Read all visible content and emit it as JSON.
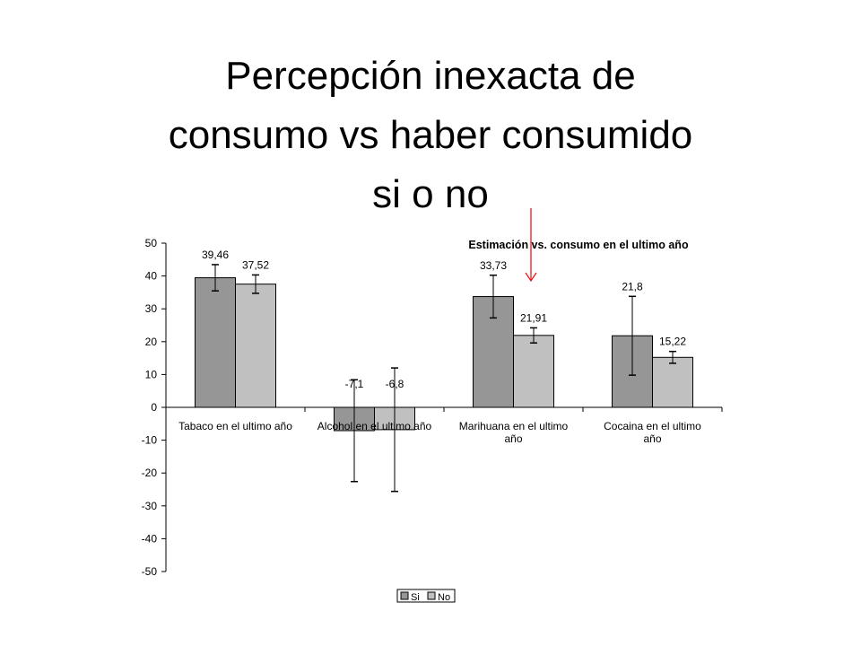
{
  "slide": {
    "title_lines": [
      "Percepción inexacta de",
      "consumo vs haber consumido",
      "si o no"
    ]
  },
  "chart_data": {
    "type": "bar",
    "title": "Estimación vs. consumo en el ultimo año",
    "categories": [
      [
        "Tabaco en el ultimo año"
      ],
      [
        "Alcohol en el ultimo año"
      ],
      [
        "Marihuana en el ultimo",
        "año"
      ],
      [
        "Cocaina en el ultimo",
        "año"
      ]
    ],
    "series": [
      {
        "name": "Si",
        "color": "#969696",
        "values": [
          39.46,
          -7.1,
          33.73,
          21.8
        ],
        "labels": [
          "39,46",
          "-7,1",
          "33,73",
          "21,8"
        ],
        "error": [
          4,
          15.5,
          6.5,
          12
        ]
      },
      {
        "name": "No",
        "color": "#c0c0c0",
        "values": [
          37.52,
          -6.8,
          21.91,
          15.22
        ],
        "labels": [
          "37,52",
          "-6,8",
          "21,91",
          "15,22"
        ],
        "error": [
          2.8,
          18.8,
          2.3,
          1.8
        ]
      }
    ],
    "ylim": [
      -50,
      50
    ],
    "yticks": [
      50,
      40,
      30,
      20,
      10,
      0,
      -10,
      -20,
      -30,
      -40,
      -50
    ],
    "grid": false,
    "legend_position": "bottom",
    "annotation": {
      "type": "arrow",
      "color": "#e8191e",
      "points_to": "Marihuana en el ultimo año"
    }
  }
}
